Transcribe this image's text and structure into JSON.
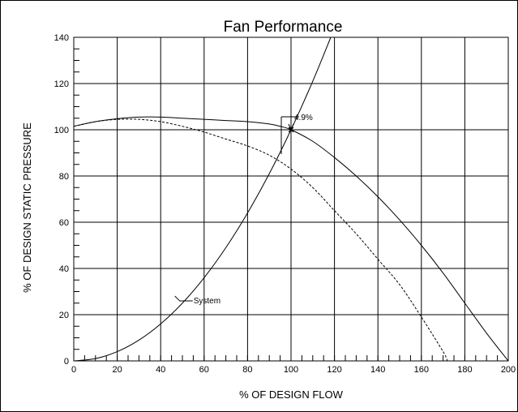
{
  "chart_data": {
    "type": "line",
    "title": "Fan Performance",
    "xlabel": "% OF DESIGN FLOW",
    "ylabel": "% OF DESIGN STATIC PRESSURE",
    "xlim": [
      0,
      200
    ],
    "ylim": [
      0,
      140
    ],
    "xticks": [
      0,
      20,
      40,
      60,
      80,
      100,
      120,
      140,
      160,
      180,
      200
    ],
    "yticks": [
      0,
      20,
      40,
      60,
      80,
      100,
      120,
      140
    ],
    "grid": true,
    "series": [
      {
        "name": "",
        "style": "solid",
        "x": [
          0,
          10,
          20,
          30,
          40,
          50,
          60,
          70,
          80,
          90,
          95,
          100,
          110,
          120,
          130,
          140,
          150,
          160,
          170,
          180,
          190,
          200
        ],
        "y": [
          101.5,
          103.5,
          104.8,
          105.5,
          105.5,
          105,
          104.5,
          104,
          103.5,
          102.5,
          101.5,
          100,
          95,
          88,
          80,
          71,
          61,
          50,
          38,
          25,
          12,
          0
        ]
      },
      {
        "name": "",
        "style": "dashed",
        "x": [
          0,
          10,
          20,
          30,
          40,
          50,
          60,
          70,
          80,
          90,
          100,
          110,
          120,
          130,
          140,
          150,
          160,
          170,
          172
        ],
        "y": [
          101.5,
          103.5,
          104.5,
          104.5,
          103.5,
          101.5,
          99,
          96,
          93,
          89,
          83,
          75,
          65,
          55,
          44,
          33,
          19,
          4,
          0
        ]
      },
      {
        "name": "System",
        "style": "solid",
        "x": [
          0,
          10,
          20,
          30,
          40,
          50,
          60,
          70,
          80,
          90,
          100,
          110,
          118.3
        ],
        "y": [
          0,
          1,
          4,
          9,
          16,
          25,
          36,
          49,
          64,
          81,
          100,
          121,
          140
        ]
      }
    ],
    "annotations": [
      {
        "text": "4.9%",
        "x": 100,
        "y": 100
      },
      {
        "text": "System",
        "x": 54,
        "y": 27
      }
    ]
  }
}
